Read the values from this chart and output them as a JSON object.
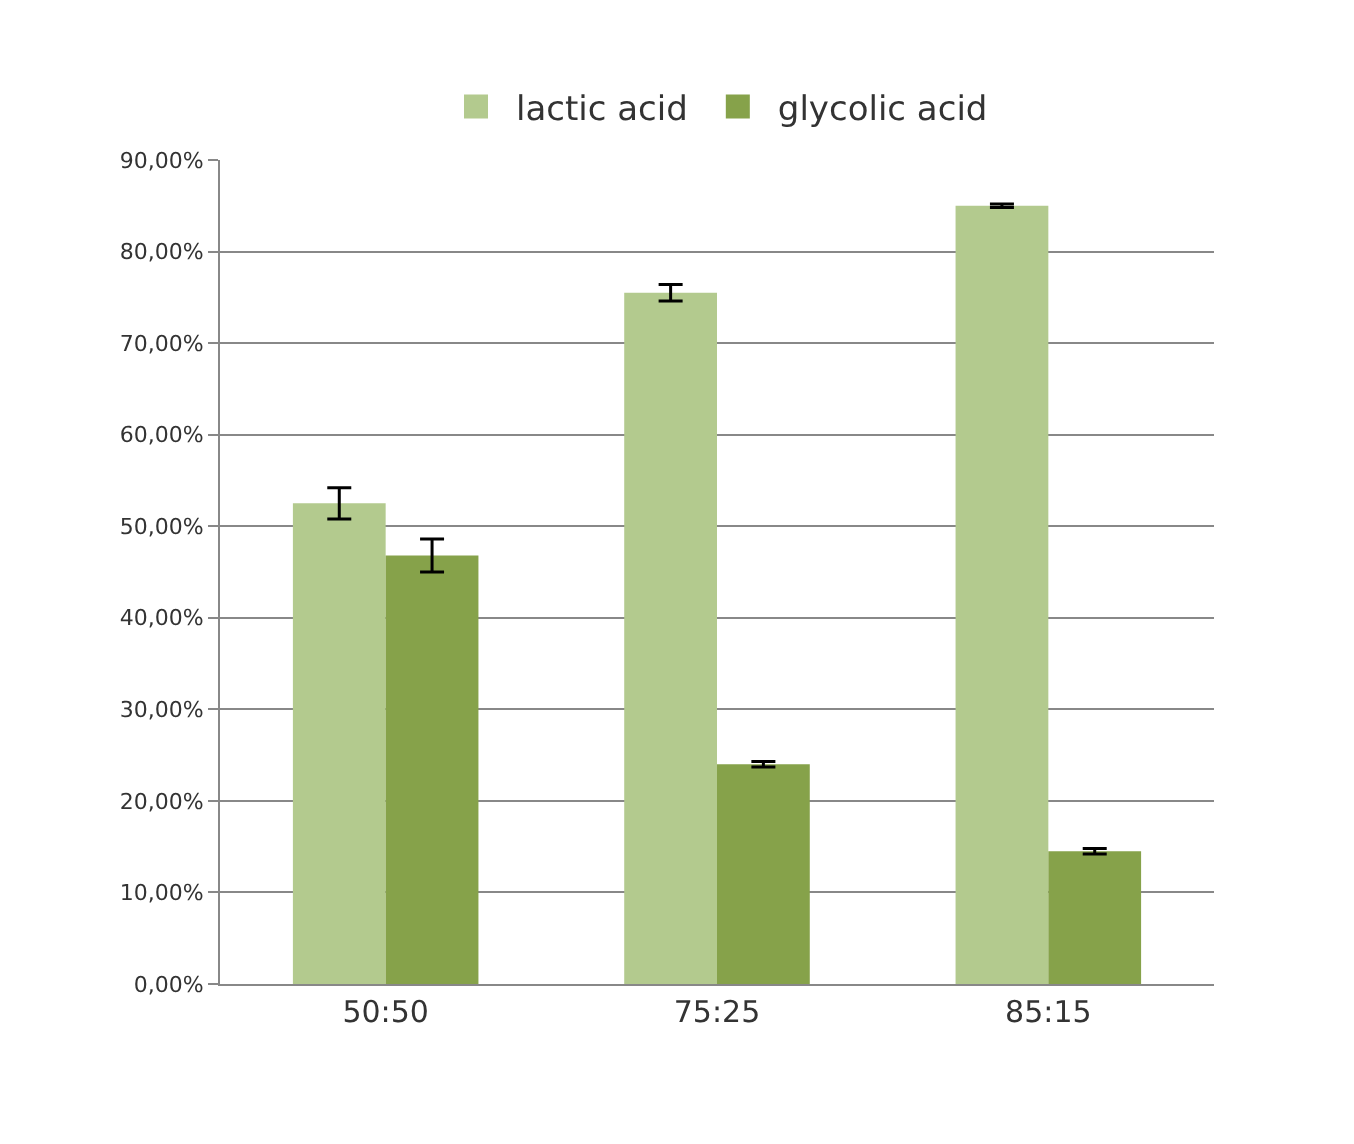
{
  "chart_data": {
    "type": "bar",
    "categories": [
      "50:50",
      "75:25",
      "85:15"
    ],
    "series": [
      {
        "name": "lactic acid",
        "color": "#b3ca8e",
        "values": [
          52.5,
          75.5,
          85.0
        ],
        "errors": [
          1.7,
          0.9,
          0.2
        ]
      },
      {
        "name": "glycolic acid",
        "color": "#86a24a",
        "values": [
          46.8,
          24.0,
          14.5
        ],
        "errors": [
          1.8,
          0.3,
          0.3
        ]
      }
    ],
    "ylim": [
      0,
      90
    ],
    "yticks": [
      {
        "value": 0,
        "label": "0,00%"
      },
      {
        "value": 10,
        "label": "10,00%"
      },
      {
        "value": 20,
        "label": "20,00%"
      },
      {
        "value": 30,
        "label": "30,00%"
      },
      {
        "value": 40,
        "label": "40,00%"
      },
      {
        "value": 50,
        "label": "50,00%"
      },
      {
        "value": 60,
        "label": "60,00%"
      },
      {
        "value": 70,
        "label": "70,00%"
      },
      {
        "value": 80,
        "label": "80,00%"
      },
      {
        "value": 90,
        "label": "90,00%"
      }
    ],
    "grid": "y",
    "legend": "top"
  }
}
